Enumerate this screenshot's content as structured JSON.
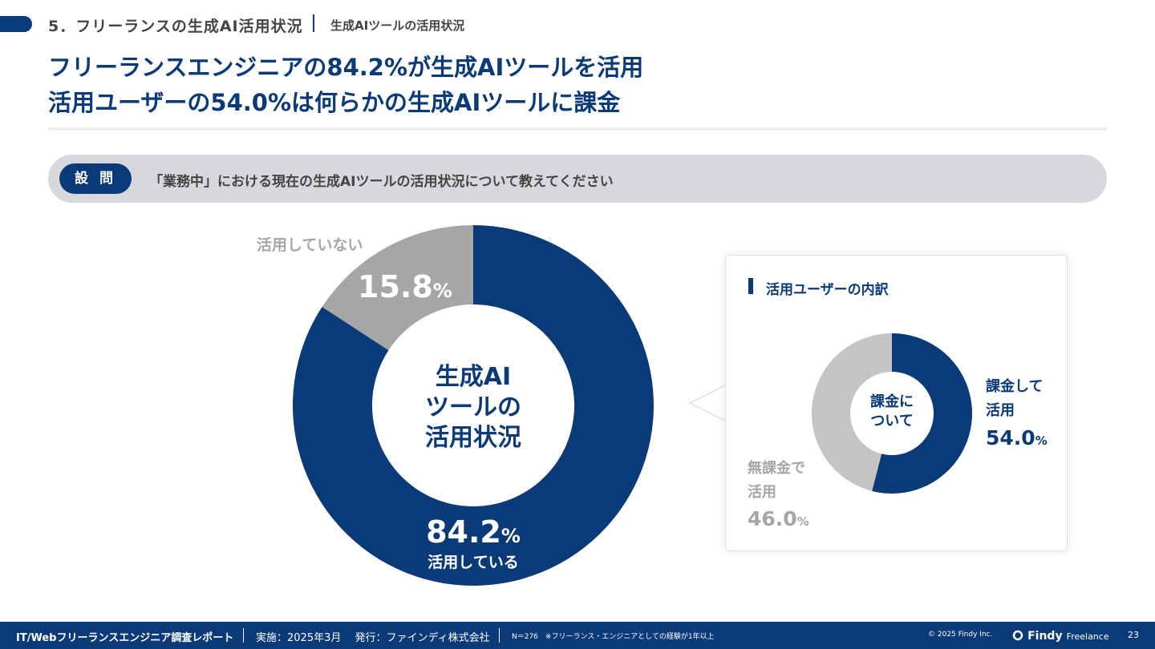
{
  "header": {
    "section": "5．フリーランスの生成AI活用状況",
    "sub_section": "生成AIツールの活用状況",
    "headline_line1": "フリーランスエンジニアの84.2%が生成AIツールを活用",
    "headline_line2": "活用ユーザーの54.0%は何らかの生成AIツールに課金"
  },
  "question": {
    "badge": "設 問",
    "text": "「業務中」における現在の生成AIツールの活用状況について教えてください"
  },
  "main_chart": {
    "center_lines": [
      "生成AI",
      "ツールの",
      "活用状況"
    ],
    "used": {
      "value": "84.2",
      "unit": "%",
      "label": "活用している"
    },
    "not_used": {
      "value": "15.8",
      "unit": "%",
      "label": "活用していない"
    }
  },
  "breakdown": {
    "title": "活用ユーザーの内訳",
    "center_lines": [
      "課金に",
      "ついて"
    ],
    "paid": {
      "label_line1": "課金して",
      "label_line2": "活用",
      "value": "54.0",
      "unit": "%"
    },
    "free": {
      "label_line1": "無課金で",
      "label_line2": "活用",
      "value": "46.0",
      "unit": "%"
    }
  },
  "chart_data": [
    {
      "type": "pie",
      "title": "",
      "categories": [
        "活用している",
        "活用していない"
      ],
      "values": [
        84.2,
        15.8
      ],
      "colors": [
        "#0b3a78",
        "#a6a6a6"
      ]
    },
    {
      "type": "pie",
      "title": "活用ユーザーの内訳",
      "categories": [
        "課金して活用",
        "無課金で活用"
      ],
      "values": [
        54.0,
        46.0
      ],
      "colors": [
        "#0b3a78",
        "#c4c4c4"
      ]
    }
  ],
  "footer": {
    "report": "IT/Webフリーランスエンジニア調査レポート",
    "date": "実施：2025年3月　 発行：ファインディ株式会社",
    "note": "N＝276　※フリーランス・エンジニアとしての経験が1年以上",
    "copyright": "© 2025 Findy Inc.",
    "brand": "Findy",
    "brand_sub": "Freelance",
    "page": "23"
  },
  "colors": {
    "brand": "#0b3a78",
    "gray": "#a6a6a6",
    "light_gray": "#c4c4c4"
  }
}
